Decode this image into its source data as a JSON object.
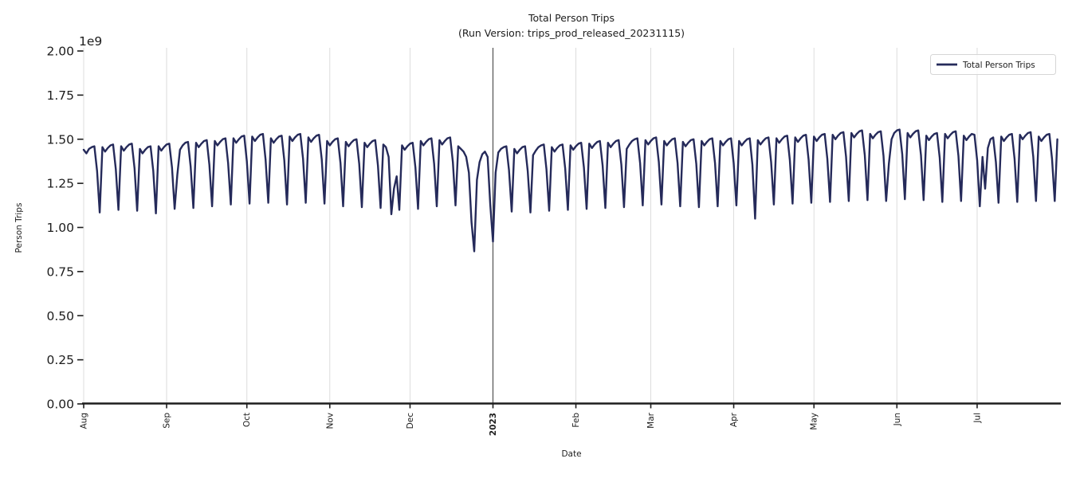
{
  "style": {
    "line_color": "#252a5a",
    "grid_color": "#dcdcdc",
    "year_line_color": "#474747",
    "spine_color": "#1d1d1d",
    "text_color": "#1d1d1d",
    "legend_border_color": "#d6d6d6",
    "background_color": "#ffffff"
  },
  "chart_data": {
    "type": "line",
    "title": "Total Person Trips",
    "subtitle": "(Run Version: trips_prod_released_20231115)",
    "xlabel": "Date",
    "ylabel": "Person Trips",
    "y_offset_label": "1e9",
    "y_unit_multiplier": 1000000000,
    "ylim": [
      0,
      2.0
    ],
    "yticks": [
      0,
      0.25,
      0.5,
      0.75,
      1.0,
      1.25,
      1.5,
      1.75,
      2.0
    ],
    "grid": "vertical month gridlines only",
    "x_range": {
      "start": "2022-08-01",
      "end": "2023-08-01"
    },
    "x_total_days": 365,
    "xticks": [
      {
        "label": "Aug",
        "day": 0,
        "bold": false
      },
      {
        "label": "Sep",
        "day": 31,
        "bold": false
      },
      {
        "label": "Oct",
        "day": 61,
        "bold": false
      },
      {
        "label": "Nov",
        "day": 92,
        "bold": false
      },
      {
        "label": "Dec",
        "day": 122,
        "bold": false
      },
      {
        "label": "2023",
        "day": 153,
        "bold": true
      },
      {
        "label": "Feb",
        "day": 184,
        "bold": false
      },
      {
        "label": "Mar",
        "day": 212,
        "bold": false
      },
      {
        "label": "Apr",
        "day": 243,
        "bold": false
      },
      {
        "label": "May",
        "day": 273,
        "bold": false
      },
      {
        "label": "Jun",
        "day": 304,
        "bold": false
      },
      {
        "label": "Jul",
        "day": 334,
        "bold": false
      }
    ],
    "year_marker": {
      "label": "2023",
      "day": 153
    },
    "legend": {
      "position": "upper right",
      "entries": [
        {
          "label": "Total Person Trips",
          "color": "#252a5a"
        }
      ]
    },
    "series": [
      {
        "name": "Total Person Trips",
        "color": "#252a5a",
        "unit": "1e9 person trips",
        "cadence": "daily, weekly dips on Sundays, deep holiday dips (Thanksgiving, Christmas ~0.87e9, New Year ~0.92e9, Jul 4)",
        "daily_values": [
          1.44,
          1.42,
          1.445,
          1.455,
          1.46,
          1.32,
          1.085,
          1.455,
          1.43,
          1.45,
          1.465,
          1.47,
          1.33,
          1.1,
          1.46,
          1.435,
          1.455,
          1.47,
          1.475,
          1.335,
          1.095,
          1.445,
          1.42,
          1.44,
          1.455,
          1.46,
          1.32,
          1.08,
          1.46,
          1.435,
          1.455,
          1.47,
          1.475,
          1.34,
          1.105,
          1.3,
          1.44,
          1.465,
          1.48,
          1.485,
          1.345,
          1.11,
          1.48,
          1.455,
          1.475,
          1.49,
          1.495,
          1.355,
          1.12,
          1.49,
          1.465,
          1.485,
          1.5,
          1.505,
          1.365,
          1.13,
          1.505,
          1.48,
          1.5,
          1.515,
          1.52,
          1.375,
          1.135,
          1.515,
          1.49,
          1.51,
          1.525,
          1.53,
          1.385,
          1.14,
          1.505,
          1.48,
          1.5,
          1.515,
          1.52,
          1.38,
          1.13,
          1.515,
          1.49,
          1.51,
          1.525,
          1.53,
          1.39,
          1.14,
          1.51,
          1.485,
          1.505,
          1.52,
          1.525,
          1.385,
          1.135,
          1.49,
          1.465,
          1.485,
          1.5,
          1.505,
          1.365,
          1.12,
          1.485,
          1.46,
          1.48,
          1.495,
          1.5,
          1.36,
          1.115,
          1.48,
          1.455,
          1.475,
          1.49,
          1.495,
          1.35,
          1.11,
          1.47,
          1.455,
          1.4,
          1.075,
          1.22,
          1.29,
          1.1,
          1.465,
          1.44,
          1.46,
          1.475,
          1.48,
          1.34,
          1.105,
          1.49,
          1.465,
          1.485,
          1.5,
          1.505,
          1.36,
          1.12,
          1.495,
          1.47,
          1.49,
          1.505,
          1.51,
          1.37,
          1.125,
          1.46,
          1.445,
          1.43,
          1.4,
          1.31,
          1.03,
          0.865,
          1.27,
          1.37,
          1.415,
          1.43,
          1.4,
          1.13,
          0.92,
          1.31,
          1.425,
          1.445,
          1.455,
          1.46,
          1.325,
          1.09,
          1.445,
          1.42,
          1.44,
          1.455,
          1.46,
          1.32,
          1.085,
          1.41,
          1.435,
          1.455,
          1.465,
          1.47,
          1.33,
          1.095,
          1.455,
          1.43,
          1.45,
          1.465,
          1.47,
          1.335,
          1.1,
          1.465,
          1.44,
          1.46,
          1.475,
          1.48,
          1.34,
          1.105,
          1.475,
          1.45,
          1.47,
          1.485,
          1.49,
          1.35,
          1.11,
          1.48,
          1.455,
          1.475,
          1.49,
          1.495,
          1.355,
          1.115,
          1.445,
          1.47,
          1.49,
          1.5,
          1.505,
          1.365,
          1.125,
          1.495,
          1.47,
          1.49,
          1.505,
          1.51,
          1.37,
          1.13,
          1.49,
          1.465,
          1.485,
          1.5,
          1.505,
          1.365,
          1.12,
          1.485,
          1.46,
          1.48,
          1.495,
          1.5,
          1.36,
          1.115,
          1.49,
          1.465,
          1.485,
          1.5,
          1.505,
          1.365,
          1.12,
          1.49,
          1.465,
          1.485,
          1.5,
          1.505,
          1.365,
          1.125,
          1.49,
          1.465,
          1.485,
          1.5,
          1.505,
          1.355,
          1.05,
          1.495,
          1.47,
          1.49,
          1.505,
          1.51,
          1.37,
          1.13,
          1.505,
          1.48,
          1.5,
          1.515,
          1.52,
          1.38,
          1.135,
          1.51,
          1.485,
          1.505,
          1.52,
          1.525,
          1.385,
          1.14,
          1.515,
          1.49,
          1.51,
          1.525,
          1.53,
          1.39,
          1.145,
          1.525,
          1.5,
          1.52,
          1.535,
          1.54,
          1.4,
          1.15,
          1.535,
          1.51,
          1.53,
          1.545,
          1.55,
          1.41,
          1.155,
          1.53,
          1.505,
          1.525,
          1.54,
          1.545,
          1.405,
          1.15,
          1.36,
          1.5,
          1.535,
          1.55,
          1.555,
          1.415,
          1.16,
          1.535,
          1.51,
          1.53,
          1.545,
          1.55,
          1.41,
          1.155,
          1.52,
          1.495,
          1.515,
          1.53,
          1.535,
          1.395,
          1.145,
          1.53,
          1.505,
          1.525,
          1.54,
          1.545,
          1.405,
          1.15,
          1.52,
          1.495,
          1.515,
          1.53,
          1.525,
          1.38,
          1.12,
          1.4,
          1.22,
          1.45,
          1.5,
          1.51,
          1.37,
          1.14,
          1.515,
          1.49,
          1.51,
          1.525,
          1.53,
          1.39,
          1.145,
          1.525,
          1.5,
          1.52,
          1.535,
          1.54,
          1.4,
          1.15,
          1.515,
          1.49,
          1.51,
          1.525,
          1.53,
          1.39,
          1.15,
          1.5
        ]
      }
    ]
  }
}
